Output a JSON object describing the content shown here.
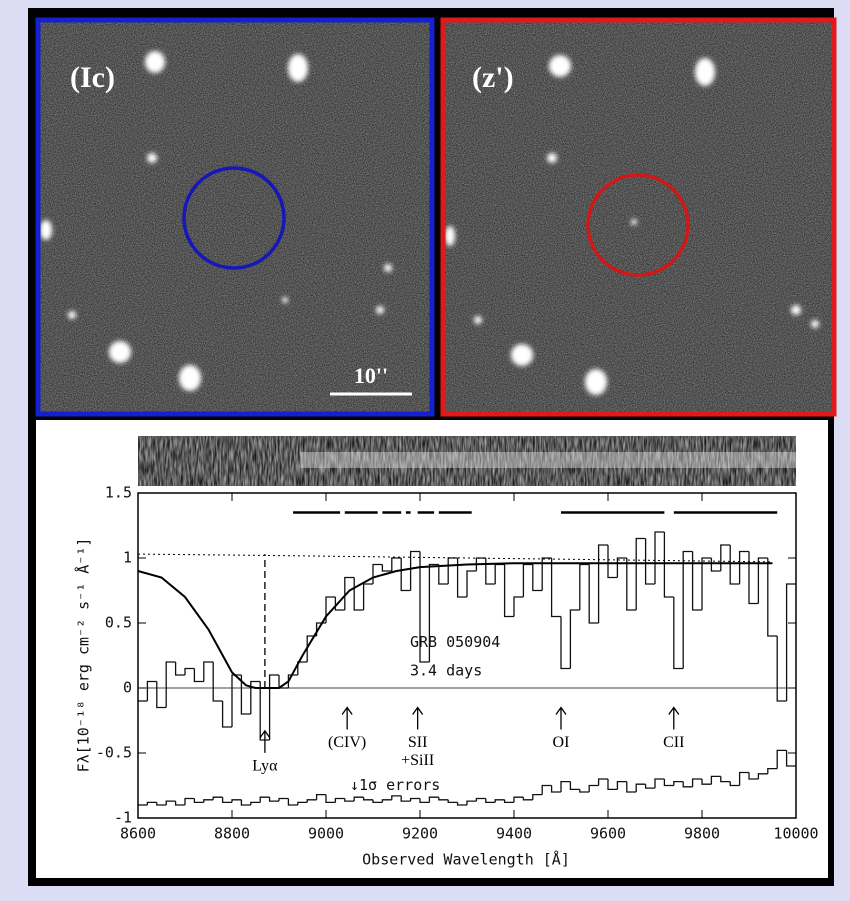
{
  "images": {
    "left_label": "(Ic)",
    "right_label": "(z')",
    "scale_label": "10''"
  },
  "chart_data": {
    "type": "step",
    "xlabel": "Observed Wavelength [Å]",
    "ylabel": "Fλ[10⁻¹⁸ erg cm⁻² s⁻¹ Å⁻¹]",
    "xlim": [
      8600,
      10000
    ],
    "ylim": [
      -1,
      1.5
    ],
    "xticks": [
      8600,
      8800,
      9000,
      9200,
      9400,
      9600,
      9800,
      10000
    ],
    "yticks": [
      -1,
      -0.5,
      0,
      0.5,
      1,
      1.5
    ],
    "grid": false,
    "x": [
      8600,
      8620,
      8640,
      8660,
      8680,
      8700,
      8720,
      8740,
      8760,
      8780,
      8800,
      8820,
      8840,
      8860,
      8880,
      8900,
      8920,
      8940,
      8960,
      8980,
      9000,
      9020,
      9040,
      9060,
      9080,
      9100,
      9120,
      9140,
      9160,
      9180,
      9200,
      9220,
      9240,
      9260,
      9280,
      9300,
      9320,
      9340,
      9360,
      9380,
      9400,
      9420,
      9440,
      9460,
      9480,
      9500,
      9520,
      9540,
      9560,
      9580,
      9600,
      9620,
      9640,
      9660,
      9680,
      9700,
      9720,
      9740,
      9760,
      9780,
      9800,
      9820,
      9840,
      9860,
      9880,
      9900,
      9920,
      9940,
      9960,
      9980
    ],
    "bin_width": 20,
    "series": [
      {
        "color": "#111111",
        "values": [
          -0.1,
          0.05,
          -0.15,
          0.2,
          0.1,
          0.15,
          0.05,
          0.2,
          -0.1,
          -0.3,
          0.1,
          -0.2,
          0.05,
          -0.4,
          0.1,
          0.0,
          0.1,
          0.2,
          0.4,
          0.5,
          0.7,
          0.6,
          0.85,
          0.6,
          0.8,
          0.95,
          0.9,
          1.0,
          0.75,
          1.05,
          0.2,
          0.95,
          0.8,
          1.0,
          0.7,
          0.9,
          1.0,
          0.8,
          0.95,
          0.55,
          0.7,
          0.95,
          0.75,
          1.0,
          0.55,
          0.15,
          0.6,
          0.95,
          0.5,
          1.1,
          0.85,
          1.0,
          0.6,
          1.15,
          0.8,
          1.2,
          0.7,
          0.15,
          1.05,
          0.6,
          1.0,
          0.9,
          1.1,
          0.8,
          1.05,
          0.65,
          1.0,
          0.4,
          -0.1,
          0.8
        ]
      },
      {
        "color": "#111111",
        "values": [
          -0.9,
          -0.88,
          -0.9,
          -0.87,
          -0.9,
          -0.85,
          -0.88,
          -0.86,
          -0.84,
          -0.88,
          -0.86,
          -0.9,
          -0.88,
          -0.84,
          -0.87,
          -0.85,
          -0.9,
          -0.88,
          -0.86,
          -0.82,
          -0.88,
          -0.85,
          -0.87,
          -0.84,
          -0.86,
          -0.88,
          -0.86,
          -0.83,
          -0.87,
          -0.85,
          -0.88,
          -0.84,
          -0.86,
          -0.88,
          -0.9,
          -0.87,
          -0.85,
          -0.88,
          -0.86,
          -0.88,
          -0.84,
          -0.86,
          -0.82,
          -0.75,
          -0.8,
          -0.72,
          -0.78,
          -0.8,
          -0.75,
          -0.7,
          -0.78,
          -0.72,
          -0.8,
          -0.74,
          -0.77,
          -0.7,
          -0.75,
          -0.72,
          -0.76,
          -0.7,
          -0.74,
          -0.68,
          -0.72,
          -0.75,
          -0.65,
          -0.7,
          -0.66,
          -0.62,
          -0.48,
          -0.6
        ]
      }
    ],
    "model": {
      "color": "#000000",
      "x": [
        8600,
        8650,
        8700,
        8750,
        8800,
        8830,
        8850,
        8870,
        8900,
        8920,
        8950,
        9000,
        9050,
        9100,
        9150,
        9200,
        9300,
        9400,
        9500,
        9600,
        9700,
        9800,
        9900,
        9950
      ],
      "values": [
        0.9,
        0.85,
        0.7,
        0.45,
        0.12,
        0.02,
        0,
        0,
        0,
        0.05,
        0.25,
        0.55,
        0.75,
        0.85,
        0.9,
        0.93,
        0.95,
        0.96,
        0.96,
        0.96,
        0.96,
        0.96,
        0.96,
        0.96
      ]
    },
    "continuum": {
      "x": [
        8600,
        8870,
        9950
      ],
      "values": [
        1.03,
        1.02,
        0.97
      ]
    },
    "ly_alpha_marker": {
      "x": 8870,
      "top": 1.03
    },
    "absorption_level": 1.35,
    "absorption_segments": [
      [
        8930,
        9030
      ],
      [
        9040,
        9110
      ],
      [
        9120,
        9160
      ],
      [
        9170,
        9180
      ],
      [
        9195,
        9230
      ],
      [
        9240,
        9310
      ],
      [
        9500,
        9720
      ],
      [
        9740,
        9960
      ]
    ],
    "annotations": [
      {
        "lines": [
          "Lyα"
        ],
        "x": 8870,
        "y": -0.33
      },
      {
        "lines": [
          "(CIV)"
        ],
        "x": 9045,
        "y": -0.15
      },
      {
        "lines": [
          "SII",
          "+SiII"
        ],
        "x": 9195,
        "y": -0.15
      },
      {
        "lines": [
          "OI"
        ],
        "x": 9500,
        "y": -0.15
      },
      {
        "lines": [
          "CII"
        ],
        "x": 9740,
        "y": -0.15
      }
    ],
    "texts": [
      "GRB 050904",
      "3.4 days",
      "↓1σ errors"
    ]
  }
}
